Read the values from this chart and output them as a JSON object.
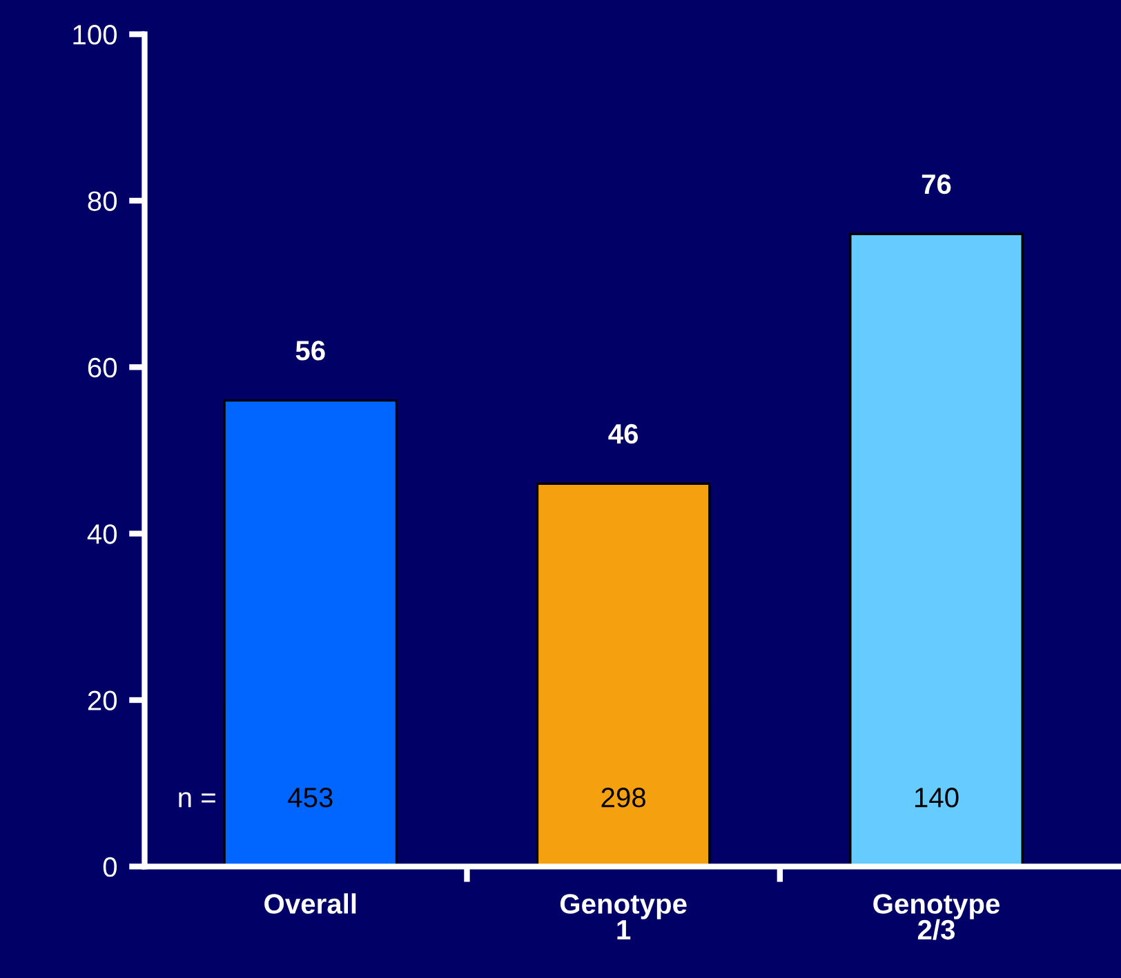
{
  "chart_data": {
    "type": "bar",
    "categories": [
      "Overall",
      "Genotype\n1",
      "Genotype\n2/3"
    ],
    "values": [
      56,
      46,
      76
    ],
    "colors": [
      "#0066ff",
      "#f5a00f",
      "#66ccff"
    ],
    "ylim": [
      0,
      100
    ],
    "yticks": [
      0,
      20,
      40,
      60,
      80,
      100
    ],
    "data_labels": true,
    "grid": false,
    "legend": false,
    "annotations": [
      "n =",
      "453",
      "298",
      "140"
    ]
  }
}
